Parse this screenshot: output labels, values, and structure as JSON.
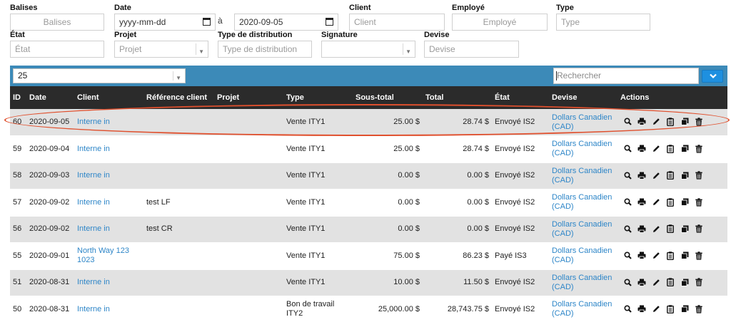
{
  "filters": {
    "balises": {
      "label": "Balises",
      "placeholder": "Balises"
    },
    "date": {
      "label": "Date",
      "from_placeholder": "yyyy-mm-dd",
      "separator": "à",
      "to_value": "2020-09-05"
    },
    "client": {
      "label": "Client",
      "placeholder": "Client"
    },
    "employe": {
      "label": "Employé",
      "placeholder": "Employé"
    },
    "type": {
      "label": "Type",
      "placeholder": "Type"
    },
    "etat": {
      "label": "État",
      "placeholder": "État"
    },
    "projet": {
      "label": "Projet",
      "placeholder": "Projet"
    },
    "type_distribution": {
      "label": "Type de distribution",
      "placeholder": "Type de distribution"
    },
    "signature": {
      "label": "Signature",
      "value": ""
    },
    "devise": {
      "label": "Devise",
      "placeholder": "Devise"
    }
  },
  "toolbar": {
    "page_size": "25",
    "search_placeholder": "Rechercher"
  },
  "table": {
    "headers": [
      "ID",
      "Date",
      "Client",
      "Référence client",
      "Projet",
      "Type",
      "Sous-total",
      "Total",
      "État",
      "Devise",
      "Actions"
    ],
    "rows": [
      {
        "id": "60",
        "date": "2020-09-05",
        "client": "Interne in",
        "reference": "",
        "projet": "",
        "type": "Vente ITY1",
        "subtotal": "25.00 $",
        "total": "28.74 $",
        "state": "Envoyé IS2",
        "currency": "Dollars Canadien (CAD)"
      },
      {
        "id": "59",
        "date": "2020-09-04",
        "client": "Interne in",
        "reference": "",
        "projet": "",
        "type": "Vente ITY1",
        "subtotal": "25.00 $",
        "total": "28.74 $",
        "state": "Envoyé IS2",
        "currency": "Dollars Canadien (CAD)"
      },
      {
        "id": "58",
        "date": "2020-09-03",
        "client": "Interne in",
        "reference": "",
        "projet": "",
        "type": "Vente ITY1",
        "subtotal": "0.00 $",
        "total": "0.00 $",
        "state": "Envoyé IS2",
        "currency": "Dollars Canadien (CAD)"
      },
      {
        "id": "57",
        "date": "2020-09-02",
        "client": "Interne in",
        "reference": "test LF",
        "projet": "",
        "type": "Vente ITY1",
        "subtotal": "0.00 $",
        "total": "0.00 $",
        "state": "Envoyé IS2",
        "currency": "Dollars Canadien (CAD)"
      },
      {
        "id": "56",
        "date": "2020-09-02",
        "client": "Interne in",
        "reference": "test CR",
        "projet": "",
        "type": "Vente ITY1",
        "subtotal": "0.00 $",
        "total": "0.00 $",
        "state": "Envoyé IS2",
        "currency": "Dollars Canadien (CAD)"
      },
      {
        "id": "55",
        "date": "2020-09-01",
        "client": "North Way 123 1023",
        "reference": "",
        "projet": "",
        "type": "Vente ITY1",
        "subtotal": "75.00 $",
        "total": "86.23 $",
        "state": "Payé IS3",
        "currency": "Dollars Canadien (CAD)"
      },
      {
        "id": "51",
        "date": "2020-08-31",
        "client": "Interne in",
        "reference": "",
        "projet": "",
        "type": "Vente ITY1",
        "subtotal": "10.00 $",
        "total": "11.50 $",
        "state": "Envoyé IS2",
        "currency": "Dollars Canadien (CAD)"
      },
      {
        "id": "50",
        "date": "2020-08-31",
        "client": "Interne in",
        "reference": "",
        "projet": "",
        "type": "Bon de travail ITY2",
        "subtotal": "25,000.00 $",
        "total": "28,743.75 $",
        "state": "Envoyé IS2",
        "currency": "Dollars Canadien (CAD)"
      }
    ]
  },
  "actions": [
    "search-icon",
    "print-icon",
    "edit-icon",
    "clipboard-icon",
    "copy-icon",
    "trash-icon"
  ],
  "colors": {
    "toolbar": "#3c8ab8",
    "header": "#2b2b2b",
    "link": "#2e86c8",
    "highlight": "#e0502e",
    "button": "#1e90e0"
  }
}
